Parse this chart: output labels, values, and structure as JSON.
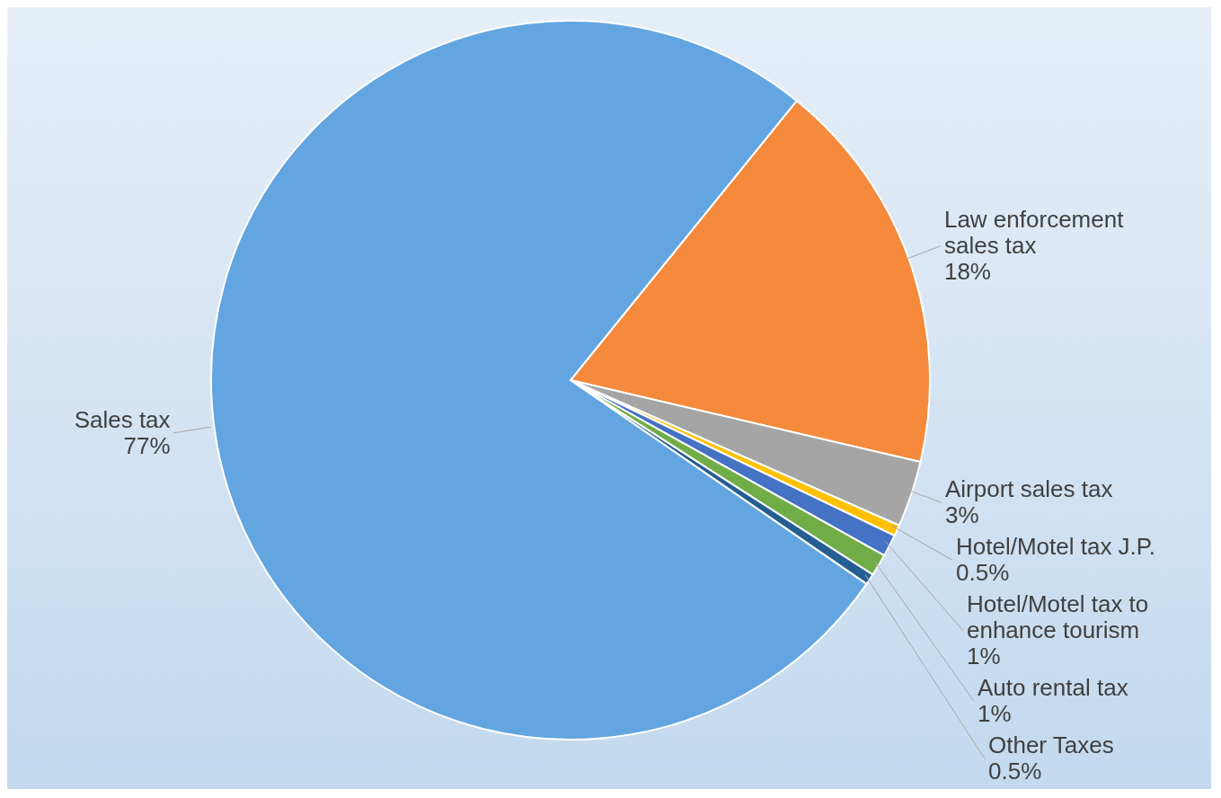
{
  "chart_data": {
    "type": "pie",
    "categories": [
      "Law enforcement sales tax",
      "Airport sales tax",
      "Hotel/Motel tax J.P.",
      "Hotel/Motel tax to enhance tourism",
      "Auto rental tax",
      "Other Taxes",
      "Sales tax"
    ],
    "values": [
      18,
      3,
      0.5,
      1,
      1,
      0.5,
      77
    ],
    "value_labels": [
      "18%",
      "3%",
      "0.5%",
      "1%",
      "1%",
      "0.5%",
      "77%"
    ],
    "colors": [
      "#f58a3c",
      "#a5a5a5",
      "#ffc000",
      "#4472c4",
      "#70ad47",
      "#255e91",
      "#62a5e0"
    ]
  }
}
